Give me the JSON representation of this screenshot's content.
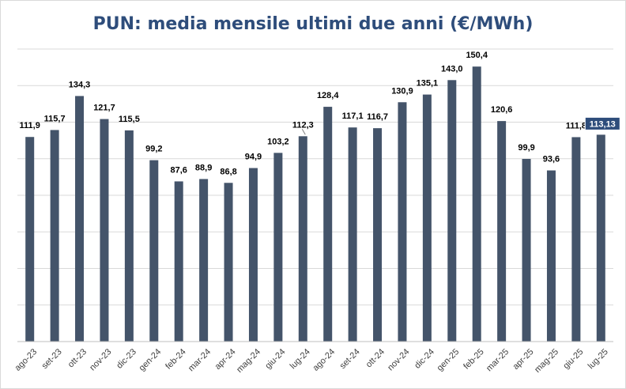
{
  "chart_data": {
    "type": "bar",
    "title": "PUN: media mensile ultimi due anni (€/MWh)",
    "categories": [
      "ago-23",
      "set-23",
      "ott-23",
      "nov-23",
      "dic-23",
      "gen-24",
      "feb-24",
      "mar-24",
      "apr-24",
      "mag-24",
      "giu-24",
      "lug-24",
      "ago-24",
      "set-24",
      "ott-24",
      "nov-24",
      "dic-24",
      "gen-25",
      "feb-25",
      "mar-25",
      "apr-25",
      "mag-25",
      "giu-25",
      "lug-25"
    ],
    "values": [
      111.9,
      115.7,
      134.3,
      121.7,
      115.5,
      99.2,
      87.6,
      88.9,
      86.8,
      94.9,
      103.2,
      112.3,
      128.4,
      117.1,
      116.7,
      130.9,
      135.1,
      143.0,
      150.4,
      120.6,
      99.9,
      93.6,
      111.8,
      113.13
    ],
    "labels": [
      "111,9",
      "115,7",
      "134,3",
      "121,7",
      "115,5",
      "99,2",
      "87,6",
      "88,9",
      "86,8",
      "94,9",
      "103,2",
      "112,3",
      "128,4",
      "117,1",
      "116,7",
      "130,9",
      "135,1",
      "143,0",
      "150,4",
      "120,6",
      "99,9",
      "93,6",
      "111,8",
      "113,13"
    ],
    "highlighted_label_index": 23,
    "ylim": [
      0,
      160
    ],
    "grid": true,
    "xlabel": "",
    "ylabel": "",
    "colors": {
      "bar": "#44546a",
      "title": "#2e4d7b",
      "highlight_box": "#2e4d7b"
    }
  }
}
